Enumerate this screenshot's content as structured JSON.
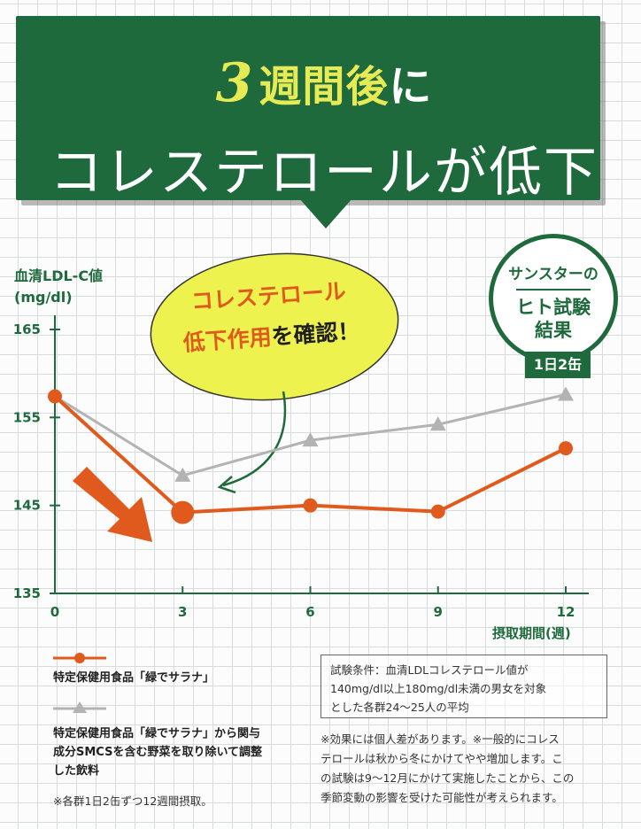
{
  "headline": {
    "line1_number": "3",
    "line1_text": "週間後",
    "line1_particle": "に",
    "line2": "コレステロールが低下"
  },
  "callout": {
    "line1": "コレステロール",
    "line2_highlight": "低下作用",
    "line2_rest": "を確認！"
  },
  "badge": {
    "line1": "サンスターの",
    "line2": "ヒト試験",
    "line3": "結果",
    "chip": "1日2缶"
  },
  "legend": {
    "series1_label": "特定保健用食品「緑でサラナ」",
    "series2_label_line1": "特定保健用食品「緑でサラナ」から関与",
    "series2_label_line2": "成分SMCSを含む野菜を取り除いて調整",
    "series2_label_line3": "した飲料"
  },
  "notes": {
    "conditions_line1": "試験条件：血清LDLコレステロール値が",
    "conditions_line2": "140mg/dl以上180mg/dl未満の男女を対象",
    "conditions_line3": "とした各群24〜25人の平均",
    "disclaimer_line1": "※効果には個人差があります。※一般的にコレス",
    "disclaimer_line2": "テロールは秋から冬にかけてやや増加します。こ",
    "disclaimer_line3": "の試験は9〜12月にかけて実施したことから、この",
    "disclaimer_line4": "季節変動の影響を受けた可能性が考えられます。",
    "intake": "※各群1日2缶ずつ12週間摂取。"
  },
  "colors": {
    "brand_green": "#1f6a3d",
    "series1": "#e05a1e",
    "series2": "#b3b3b3",
    "callout_fill": "#eef24e"
  },
  "chart_data": {
    "type": "line",
    "ylabel_line1": "血清LDL-C値",
    "ylabel_line2": "(mg/dl)",
    "xlabel": "摂取期間(週)",
    "x": [
      0,
      3,
      6,
      9,
      12
    ],
    "xticks": [
      "0",
      "3",
      "6",
      "9",
      "12"
    ],
    "yticks": [
      "135",
      "145",
      "155",
      "165"
    ],
    "ylim": [
      135,
      165
    ],
    "xlim": [
      0,
      12
    ],
    "series": [
      {
        "name": "特定保健用食品「緑でサラナ」",
        "color": "#e05a1e",
        "values": [
          157.4,
          144.2,
          145.0,
          144.3,
          151.5
        ]
      },
      {
        "name": "特定保健用食品「緑でサラナ」から関与成分SMCSを含む野菜を取り除いて調整した飲料",
        "color": "#b3b3b3",
        "values": [
          157.4,
          148.4,
          152.4,
          154.2,
          157.6
        ]
      }
    ]
  }
}
